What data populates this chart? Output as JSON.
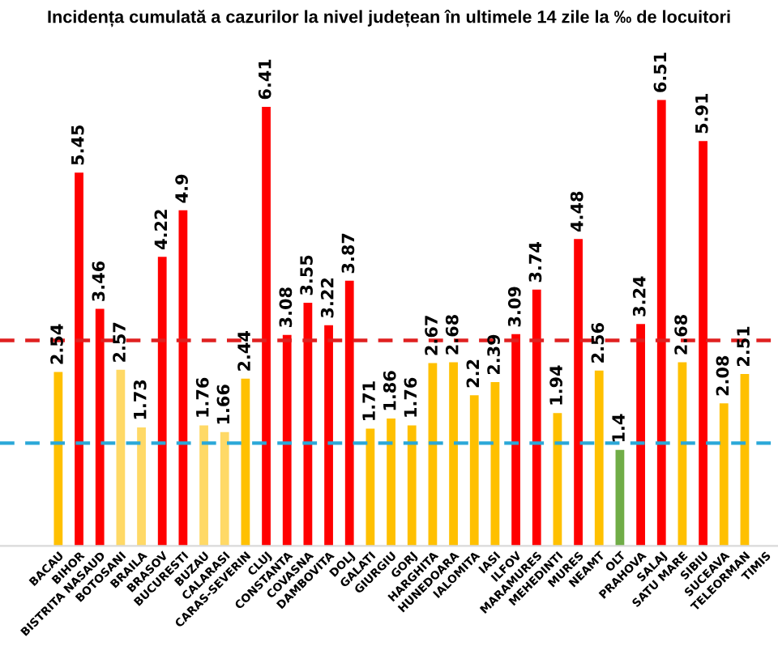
{
  "chart_data": {
    "type": "bar",
    "title": "Incidența cumulată a cazurilor la nivel județean în ultimele 14 zile la ‰ de locuitori",
    "categories": [
      "BACAU",
      "BIHOR",
      "BISTRITA NASAUD",
      "BOTOSANI",
      "BRAILA",
      "BRASOV",
      "BUCURESTI",
      "BUZAU",
      "CALARASI",
      "CARAS-SEVERIN",
      "CLUJ",
      "CONSTANTA",
      "COVASNA",
      "DAMBOVITA",
      "DOLJ",
      "GALATI",
      "GIURGIU",
      "GORJ",
      "HARGHITA",
      "HUNEDOARA",
      "IALOMITA",
      "IASI",
      "ILFOV",
      "MARAMURES",
      "MEHEDINTI",
      "MURES",
      "NEAMT",
      "OLT",
      "PRAHOVA",
      "SALAJ",
      "SATU MARE",
      "SIBIU",
      "SUCEAVA",
      "TELEORMAN",
      "TIMIS"
    ],
    "values": [
      2.54,
      5.45,
      3.46,
      2.57,
      1.73,
      4.22,
      4.9,
      1.76,
      1.66,
      2.44,
      6.41,
      3.08,
      3.55,
      3.22,
      3.87,
      1.71,
      1.86,
      1.76,
      2.67,
      2.68,
      2.2,
      2.39,
      3.09,
      3.74,
      1.94,
      4.48,
      2.56,
      1.4,
      3.24,
      6.51,
      2.68,
      5.91,
      2.08,
      2.51,
      null
    ],
    "colors": [
      "#ffc000",
      "#ff0000",
      "#ff0000",
      "#ffd966",
      "#ffd966",
      "#ff0000",
      "#ff0000",
      "#ffd966",
      "#ffd966",
      "#ffc000",
      "#ff0000",
      "#ff0000",
      "#ff0000",
      "#ff0000",
      "#ff0000",
      "#ffc000",
      "#ffc000",
      "#ffc000",
      "#ffc000",
      "#ffc000",
      "#ffc000",
      "#ffc000",
      "#ff0000",
      "#ff0000",
      "#ffc000",
      "#ff0000",
      "#ffc000",
      "#70ad47",
      "#ff0000",
      "#ff0000",
      "#ffc000",
      "#ff0000",
      "#ffc000",
      "#ffc000",
      "#ffc000"
    ],
    "data_labels": true,
    "ref_lines": [
      {
        "axis": "y",
        "value": 3,
        "color": "#e02020",
        "line_style": "dashed"
      },
      {
        "axis": "y",
        "value": 1.5,
        "color": "#2aa8d8",
        "line_style": "dashed"
      }
    ],
    "grid": false,
    "legend": false
  }
}
